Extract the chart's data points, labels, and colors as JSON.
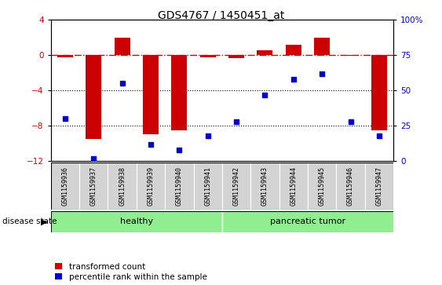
{
  "title": "GDS4767 / 1450451_at",
  "samples": [
    "GSM1159936",
    "GSM1159937",
    "GSM1159938",
    "GSM1159939",
    "GSM1159940",
    "GSM1159941",
    "GSM1159942",
    "GSM1159943",
    "GSM1159944",
    "GSM1159945",
    "GSM1159946",
    "GSM1159947"
  ],
  "transformed_count": [
    -0.2,
    -9.5,
    2.0,
    -9.0,
    -8.5,
    -0.2,
    -0.3,
    0.6,
    1.2,
    2.0,
    -0.1,
    -8.5
  ],
  "percentile_rank": [
    30,
    2,
    55,
    12,
    8,
    18,
    28,
    47,
    58,
    62,
    28,
    18
  ],
  "bar_color": "#cc0000",
  "dot_color": "#0000cc",
  "left_ylim": [
    -12,
    4
  ],
  "left_yticks": [
    -12,
    -8,
    -4,
    0,
    4
  ],
  "right_ylim": [
    0,
    100
  ],
  "right_yticks": [
    0,
    25,
    50,
    75,
    100
  ],
  "right_yticklabels": [
    "0",
    "25",
    "50",
    "75",
    "100%"
  ],
  "dotted_lines": [
    -4,
    -8
  ],
  "legend_items": [
    "transformed count",
    "percentile rank within the sample"
  ],
  "disease_state_label": "disease state",
  "healthy_range": [
    0,
    5
  ],
  "tumor_range": [
    6,
    11
  ],
  "background_color": "#ffffff",
  "cell_bg_color": "#d3d3d3",
  "green_color": "#90EE90"
}
